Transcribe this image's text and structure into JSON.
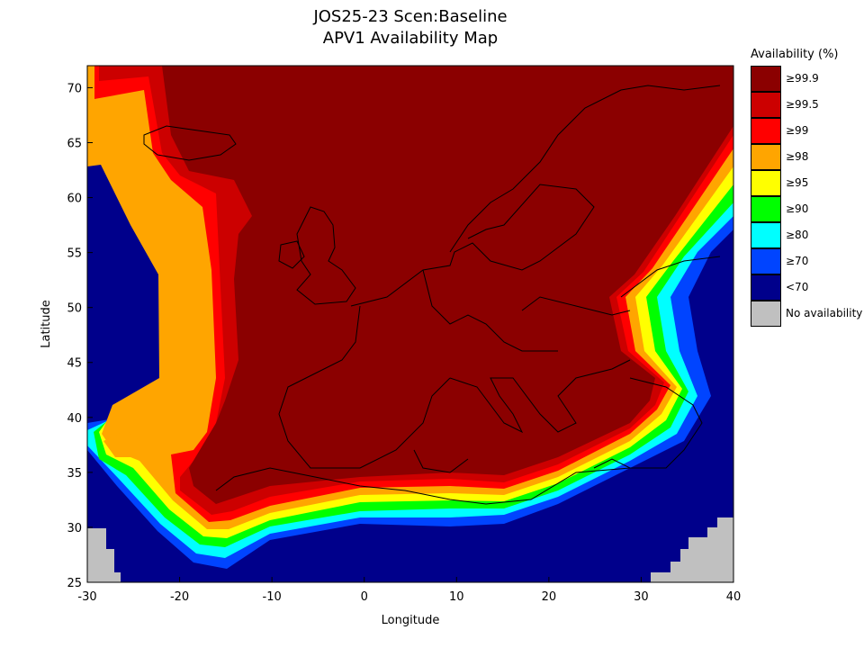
{
  "title": {
    "line1": "JOS25-23 Scen:Baseline",
    "line2": "APV1 Availability Map"
  },
  "axes": {
    "xlabel": "Longitude",
    "ylabel": "Latitude",
    "x_range": [
      -30,
      40
    ],
    "y_range": [
      25,
      72
    ],
    "x_ticks": [
      "-30",
      "-20",
      "-10",
      "0",
      "10",
      "20",
      "30",
      "40"
    ],
    "y_ticks": [
      "25",
      "30",
      "35",
      "40",
      "45",
      "50",
      "55",
      "60",
      "65",
      "70"
    ]
  },
  "legend": {
    "title": "Availability (%)",
    "items": [
      {
        "label": "≥99.9",
        "color": "#8b0000"
      },
      {
        "label": "≥99.5",
        "color": "#cc0000"
      },
      {
        "label": "≥99",
        "color": "#ff0000"
      },
      {
        "label": "≥98",
        "color": "#ffa500"
      },
      {
        "label": "≥95",
        "color": "#ffff00"
      },
      {
        "label": "≥90",
        "color": "#00ff00"
      },
      {
        "label": "≥80",
        "color": "#00ffff"
      },
      {
        "label": "≥70",
        "color": "#0044ff"
      },
      {
        "label": "<70",
        "color": "#00008b"
      },
      {
        "label": "No availability",
        "color": "#c0c0c0"
      }
    ]
  }
}
